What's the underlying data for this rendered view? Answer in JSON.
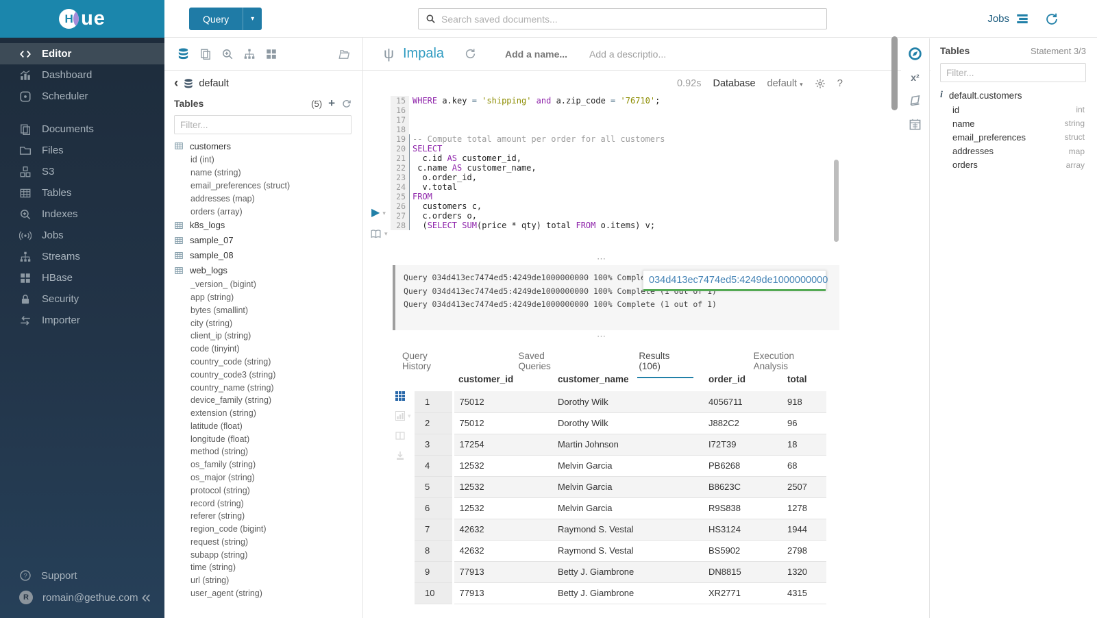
{
  "brand": {
    "logo_letter": "H",
    "logo_text": "ue"
  },
  "sidebar": {
    "items": [
      {
        "label": "Editor",
        "icon": "code",
        "active": true
      },
      {
        "label": "Dashboard",
        "icon": "dashboard"
      },
      {
        "label": "Scheduler",
        "icon": "scheduler"
      },
      {
        "label": "Documents",
        "icon": "documents",
        "gap": true
      },
      {
        "label": "Files",
        "icon": "folder"
      },
      {
        "label": "S3",
        "icon": "cubes"
      },
      {
        "label": "Tables",
        "icon": "table-grid"
      },
      {
        "label": "Indexes",
        "icon": "search-plus"
      },
      {
        "label": "Jobs",
        "icon": "broadcast"
      },
      {
        "label": "Streams",
        "icon": "sitemap"
      },
      {
        "label": "HBase",
        "icon": "squares"
      },
      {
        "label": "Security",
        "icon": "lock"
      },
      {
        "label": "Importer",
        "icon": "swap"
      }
    ],
    "support_label": "Support",
    "user_email": "romain@gethue.com",
    "avatar_initial": "R",
    "collapse_glyph": "«"
  },
  "topbar": {
    "query_button": "Query",
    "query_caret": "▾",
    "search_placeholder": "Search saved documents...",
    "jobs_label": "Jobs"
  },
  "left_assist": {
    "back_glyph": "‹",
    "breadcrumb": "default",
    "header": "Tables",
    "count": "(5)",
    "plus_glyph": "+",
    "filter_placeholder": "Filter...",
    "tables": [
      {
        "name": "customers",
        "columns": [
          "id (int)",
          "name (string)",
          "email_preferences (struct)",
          "addresses (map)",
          "orders (array)"
        ]
      },
      {
        "name": "k8s_logs",
        "columns": []
      },
      {
        "name": "sample_07",
        "columns": []
      },
      {
        "name": "sample_08",
        "columns": []
      },
      {
        "name": "web_logs",
        "columns": [
          "_version_ (bigint)",
          "app (string)",
          "bytes (smallint)",
          "city (string)",
          "client_ip (string)",
          "code (tinyint)",
          "country_code (string)",
          "country_code3 (string)",
          "country_name (string)",
          "device_family (string)",
          "extension (string)",
          "latitude (float)",
          "longitude (float)",
          "method (string)",
          "os_family (string)",
          "os_major (string)",
          "protocol (string)",
          "record (string)",
          "referer (string)",
          "region_code (bigint)",
          "request (string)",
          "subapp (string)",
          "time (string)",
          "url (string)",
          "user_agent (string)"
        ]
      }
    ]
  },
  "editor": {
    "engine": "Impala",
    "engine_glyph": "ψ",
    "name_placeholder": "Add a name...",
    "description_placeholder": "Add a descriptio...",
    "exec_time": "0.92s",
    "database_label": "Database",
    "database_value": "default",
    "database_caret": "▾",
    "help_glyph": "?",
    "play_glyph": "▶",
    "code": [
      {
        "n": 15,
        "tokens": [
          [
            "kw",
            "WHERE"
          ],
          [
            "t",
            " a.key "
          ],
          [
            "op",
            "="
          ],
          [
            "t",
            " "
          ],
          [
            "s",
            "'shipping'"
          ],
          [
            "t",
            " "
          ],
          [
            "kw",
            "and"
          ],
          [
            "t",
            " a.zip_code "
          ],
          [
            "op",
            "="
          ],
          [
            "t",
            " "
          ],
          [
            "s",
            "'76710'"
          ],
          [
            "t",
            ";"
          ]
        ]
      },
      {
        "n": 16,
        "tokens": []
      },
      {
        "n": 17,
        "tokens": []
      },
      {
        "n": 18,
        "tokens": []
      },
      {
        "n": 19,
        "st": true,
        "tokens": [
          [
            "c",
            "-- Compute total amount per order for all customers"
          ]
        ]
      },
      {
        "n": 20,
        "st": true,
        "tokens": [
          [
            "kw",
            "SELECT"
          ]
        ]
      },
      {
        "n": 21,
        "st": true,
        "tokens": [
          [
            "t",
            "  c.id "
          ],
          [
            "kw",
            "AS"
          ],
          [
            "t",
            " customer_id,"
          ]
        ]
      },
      {
        "n": 22,
        "st": true,
        "tokens": [
          [
            "t",
            " c.name "
          ],
          [
            "kw",
            "AS"
          ],
          [
            "t",
            " customer_name,"
          ]
        ]
      },
      {
        "n": 23,
        "st": true,
        "tokens": [
          [
            "t",
            "  o.order_id,"
          ]
        ]
      },
      {
        "n": 24,
        "st": true,
        "tokens": [
          [
            "t",
            "  v.total"
          ]
        ]
      },
      {
        "n": 25,
        "st": true,
        "tokens": [
          [
            "kw",
            "FROM"
          ]
        ]
      },
      {
        "n": 26,
        "st": true,
        "tokens": [
          [
            "t",
            "  customers c,"
          ]
        ]
      },
      {
        "n": 27,
        "st": true,
        "tokens": [
          [
            "t",
            "  c.orders o,"
          ]
        ]
      },
      {
        "n": 28,
        "st": true,
        "tokens": [
          [
            "t",
            "  ("
          ],
          [
            "kw",
            "SELECT"
          ],
          [
            "t",
            " "
          ],
          [
            "kw",
            "SUM"
          ],
          [
            "t",
            "(price * qty) total "
          ],
          [
            "kw",
            "FROM"
          ],
          [
            "t",
            " o.items) v;"
          ]
        ]
      }
    ]
  },
  "log": {
    "lines": [
      "Query 034d413ec7474ed5:4249de1000000000 100% Complete (1 out of 1)",
      "Query 034d413ec7474ed5:4249de1000000000 100% Complete (1 out of 1)",
      "Query 034d413ec7474ed5:4249de1000000000 100% Complete (1 out of 1)"
    ],
    "tooltip": "034d413ec7474ed5:4249de1000000000"
  },
  "tabs": [
    {
      "label": "Query History"
    },
    {
      "label": "Saved Queries"
    },
    {
      "label": "Results (106)",
      "active": true
    },
    {
      "label": "Execution Analysis"
    }
  ],
  "results": {
    "columns": [
      "customer_id",
      "customer_name",
      "order_id",
      "total"
    ],
    "rows": [
      [
        "1",
        "75012",
        "Dorothy Wilk",
        "4056711",
        "918"
      ],
      [
        "2",
        "75012",
        "Dorothy Wilk",
        "J882C2",
        "96"
      ],
      [
        "3",
        "17254",
        "Martin Johnson",
        "I72T39",
        "18"
      ],
      [
        "4",
        "12532",
        "Melvin Garcia",
        "PB6268",
        "68"
      ],
      [
        "5",
        "12532",
        "Melvin Garcia",
        "B8623C",
        "2507"
      ],
      [
        "6",
        "12532",
        "Melvin Garcia",
        "R9S838",
        "1278"
      ],
      [
        "7",
        "42632",
        "Raymond S. Vestal",
        "HS3124",
        "1944"
      ],
      [
        "8",
        "42632",
        "Raymond S. Vestal",
        "BS5902",
        "2798"
      ],
      [
        "9",
        "77913",
        "Betty J. Giambrone",
        "DN8815",
        "1320"
      ],
      [
        "10",
        "77913",
        "Betty J. Giambrone",
        "XR2771",
        "4315"
      ]
    ]
  },
  "right_panel": {
    "title": "Tables",
    "statement": "Statement 3/3",
    "filter_placeholder": "Filter...",
    "table_name": "default.customers",
    "info_glyph": "i",
    "columns": [
      {
        "name": "id",
        "type": "int"
      },
      {
        "name": "name",
        "type": "string"
      },
      {
        "name": "email_preferences",
        "type": "struct"
      },
      {
        "name": "addresses",
        "type": "map"
      },
      {
        "name": "orders",
        "type": "array"
      }
    ]
  },
  "colors": {
    "topbar_teal": "#1b86ac",
    "accent_blue": "#2180a8",
    "keyword_purple": "#8e24aa",
    "string_olive": "#8c8c00",
    "link_blue": "#4584b6",
    "progress_green": "#54a954"
  }
}
